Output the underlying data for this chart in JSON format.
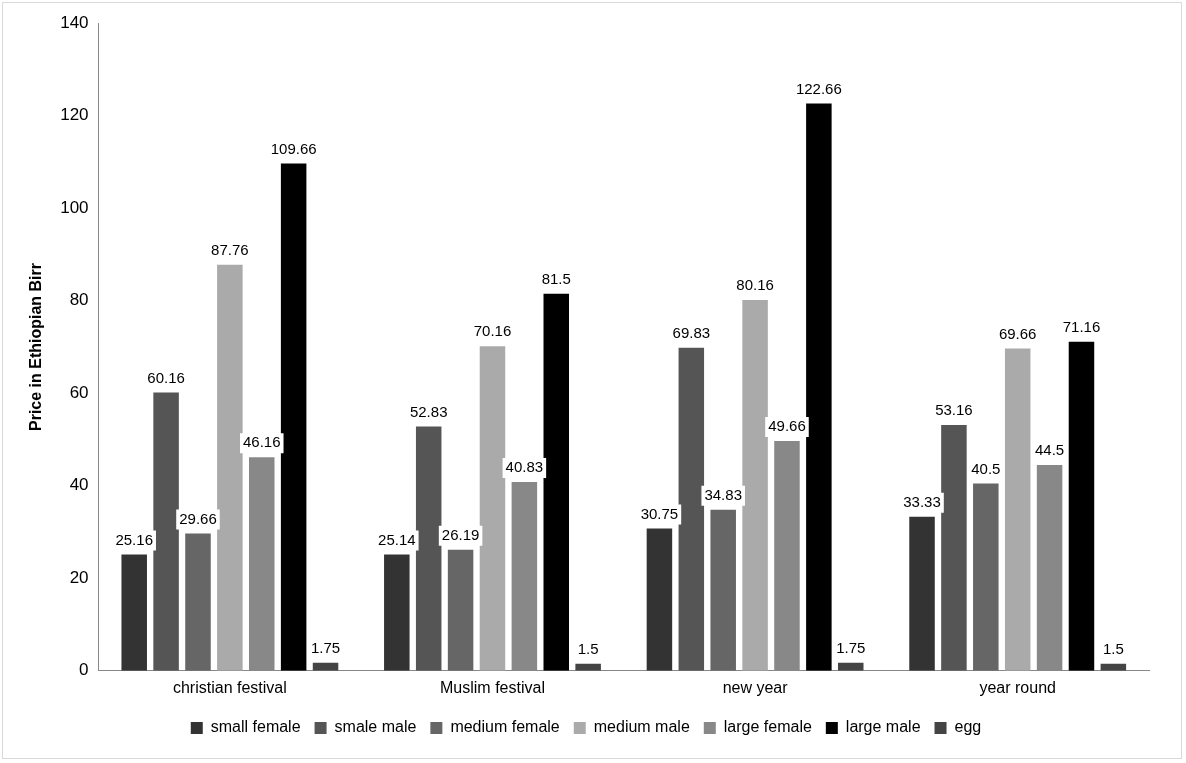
{
  "chart_data": {
    "type": "bar",
    "ylabel": "Price in Ethiopian Birr",
    "categories": [
      "christian festival",
      "Muslim festival",
      "new year",
      "year round"
    ],
    "series": [
      {
        "name": "small female",
        "color": "#333333",
        "values": [
          25.16,
          25.14,
          30.75,
          33.33
        ]
      },
      {
        "name": "smale male",
        "color": "#555555",
        "values": [
          60.16,
          52.83,
          69.83,
          53.16
        ]
      },
      {
        "name": "medium female",
        "color": "#666666",
        "values": [
          29.66,
          26.19,
          34.83,
          40.5
        ]
      },
      {
        "name": "medium male",
        "color": "#aaaaaa",
        "values": [
          87.76,
          70.16,
          80.16,
          69.66
        ]
      },
      {
        "name": "large female",
        "color": "#888888",
        "values": [
          46.16,
          40.83,
          49.66,
          44.5
        ]
      },
      {
        "name": "large male",
        "color": "#000000",
        "values": [
          109.66,
          81.5,
          122.66,
          71.16
        ]
      },
      {
        "name": "egg",
        "color": "#444444",
        "values": [
          1.75,
          1.5,
          1.75,
          1.5
        ]
      }
    ],
    "ylim": [
      0,
      140
    ],
    "yticks": [
      0,
      20,
      40,
      60,
      80,
      100,
      120,
      140
    ],
    "grid": false,
    "legend": "bottom",
    "data_labels": true
  }
}
